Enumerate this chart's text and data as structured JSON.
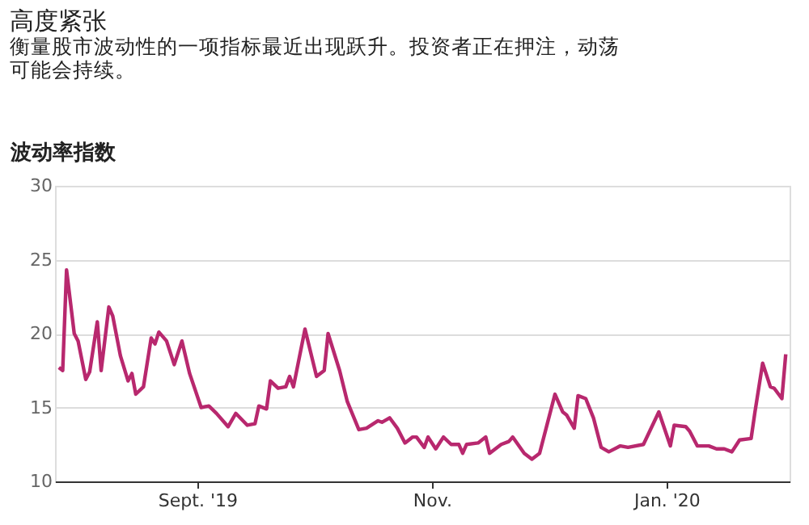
{
  "chart_data": {
    "type": "line",
    "title": "高度紧张",
    "subtitle": "衡量股市波动性的一项指标最近出现跃升。投资者正在押注，动荡可能会持续。",
    "ylabel": "波动率指数",
    "x": [
      "2019-07-27",
      "2019-07-28",
      "2019-07-29",
      "2019-07-31",
      "2019-08-01",
      "2019-08-03",
      "2019-08-04",
      "2019-08-06",
      "2019-08-07",
      "2019-08-09",
      "2019-08-10",
      "2019-08-12",
      "2019-08-14",
      "2019-08-15",
      "2019-08-16",
      "2019-08-18",
      "2019-08-20",
      "2019-08-21",
      "2019-08-22",
      "2019-08-24",
      "2019-08-26",
      "2019-08-28",
      "2019-08-30",
      "2019-09-02",
      "2019-09-04",
      "2019-09-06",
      "2019-09-09",
      "2019-09-11",
      "2019-09-14",
      "2019-09-16",
      "2019-09-17",
      "2019-09-19",
      "2019-09-20",
      "2019-09-22",
      "2019-09-24",
      "2019-09-25",
      "2019-09-26",
      "2019-09-29",
      "2019-10-02",
      "2019-10-04",
      "2019-10-05",
      "2019-10-08",
      "2019-10-10",
      "2019-10-13",
      "2019-10-15",
      "2019-10-18",
      "2019-10-19",
      "2019-10-21",
      "2019-10-23",
      "2019-10-25",
      "2019-10-27",
      "2019-10-28",
      "2019-10-30",
      "2019-10-31",
      "2019-11-02",
      "2019-11-04",
      "2019-11-06",
      "2019-11-08",
      "2019-11-09",
      "2019-11-10",
      "2019-11-13",
      "2019-11-15",
      "2019-11-16",
      "2019-11-19",
      "2019-11-21",
      "2019-11-22",
      "2019-11-25",
      "2019-11-27",
      "2019-11-29",
      "2019-12-01",
      "2019-12-03",
      "2019-12-05",
      "2019-12-06",
      "2019-12-08",
      "2019-12-09",
      "2019-12-11",
      "2019-12-13",
      "2019-12-15",
      "2019-12-17",
      "2019-12-20",
      "2019-12-22",
      "2019-12-26",
      "2019-12-30",
      "2020-01-02",
      "2020-01-03",
      "2020-01-06",
      "2020-01-07",
      "2020-01-09",
      "2020-01-12",
      "2020-01-14",
      "2020-01-16",
      "2020-01-18",
      "2020-01-20",
      "2020-01-23",
      "2020-01-24",
      "2020-01-26",
      "2020-01-28",
      "2020-01-29",
      "2020-01-31",
      "2020-02-01"
    ],
    "series": [
      {
        "color": "#b8286e",
        "values": [
          17.7,
          17.5,
          24.3,
          20.0,
          19.5,
          16.9,
          17.4,
          20.8,
          17.5,
          21.8,
          21.2,
          18.5,
          16.8,
          17.3,
          15.9,
          16.4,
          19.7,
          19.3,
          20.1,
          19.5,
          17.9,
          19.5,
          17.3,
          15.0,
          15.1,
          14.6,
          13.7,
          14.6,
          13.8,
          13.9,
          15.1,
          14.9,
          16.8,
          16.3,
          16.4,
          17.1,
          16.4,
          20.3,
          17.1,
          17.5,
          20.0,
          17.5,
          15.4,
          13.5,
          13.6,
          14.1,
          14.0,
          14.3,
          13.6,
          12.6,
          13.0,
          13.0,
          12.3,
          13.0,
          12.2,
          13.0,
          12.5,
          12.5,
          11.9,
          12.5,
          12.6,
          13.0,
          11.9,
          12.5,
          12.7,
          13.0,
          11.9,
          11.5,
          11.9,
          13.9,
          15.9,
          14.7,
          14.5,
          13.6,
          15.8,
          15.6,
          14.3,
          12.3,
          12.0,
          12.4,
          12.3,
          12.5,
          14.7,
          12.4,
          13.8,
          13.7,
          13.4,
          12.4,
          12.4,
          12.2,
          12.2,
          12.0,
          12.8,
          12.9,
          14.7,
          18.0,
          16.4,
          16.3,
          15.6,
          18.6
        ]
      }
    ],
    "xlim": [
      "2019-07-26",
      "2020-02-02"
    ],
    "xticks": [
      {
        "value": "2019-09-01",
        "label": "Sept. '19"
      },
      {
        "value": "2019-11-01",
        "label": "Nov."
      },
      {
        "value": "2020-01-01",
        "label": "Jan. '20"
      }
    ],
    "ylim": [
      10,
      30
    ],
    "yticks": [
      10,
      15,
      20,
      25,
      30
    ],
    "grid": "y",
    "marker": "none",
    "line_style": "solid"
  }
}
